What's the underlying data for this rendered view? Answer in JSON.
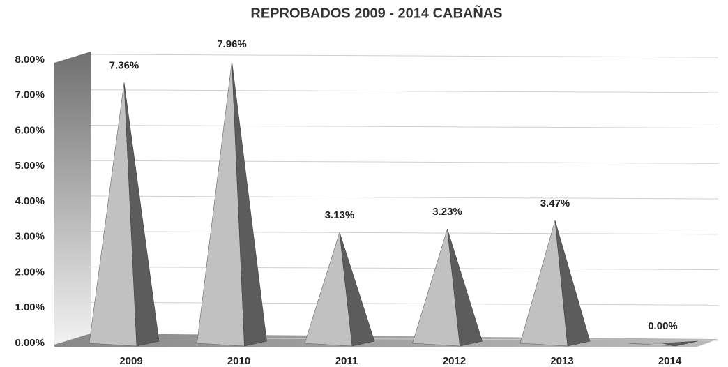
{
  "chart_data": {
    "type": "pyramid",
    "title": "REPROBADOS 2009 - 2014 CABAÑAS",
    "categories": [
      "2009",
      "2010",
      "2011",
      "2012",
      "2013",
      "2014"
    ],
    "values": [
      7.36,
      7.96,
      3.13,
      3.23,
      3.47,
      0
    ],
    "value_labels": [
      "7.36%",
      "7.96%",
      "3.13%",
      "3.23%",
      "3.47%",
      "0.00%"
    ],
    "color": "#a8a8a8",
    "ylim": [
      0,
      8
    ],
    "yticks": [
      {
        "value": 0,
        "label": "0.00%"
      },
      {
        "value": 1,
        "label": "1.00%"
      },
      {
        "value": 2,
        "label": "2.00%"
      },
      {
        "value": 3,
        "label": "3.00%"
      },
      {
        "value": 4,
        "label": "4.00%"
      },
      {
        "value": 5,
        "label": "5.00%"
      },
      {
        "value": 6,
        "label": "6.00%"
      },
      {
        "value": 7,
        "label": "7.00%"
      },
      {
        "value": 8,
        "label": "8.00%"
      }
    ],
    "grid": true
  }
}
